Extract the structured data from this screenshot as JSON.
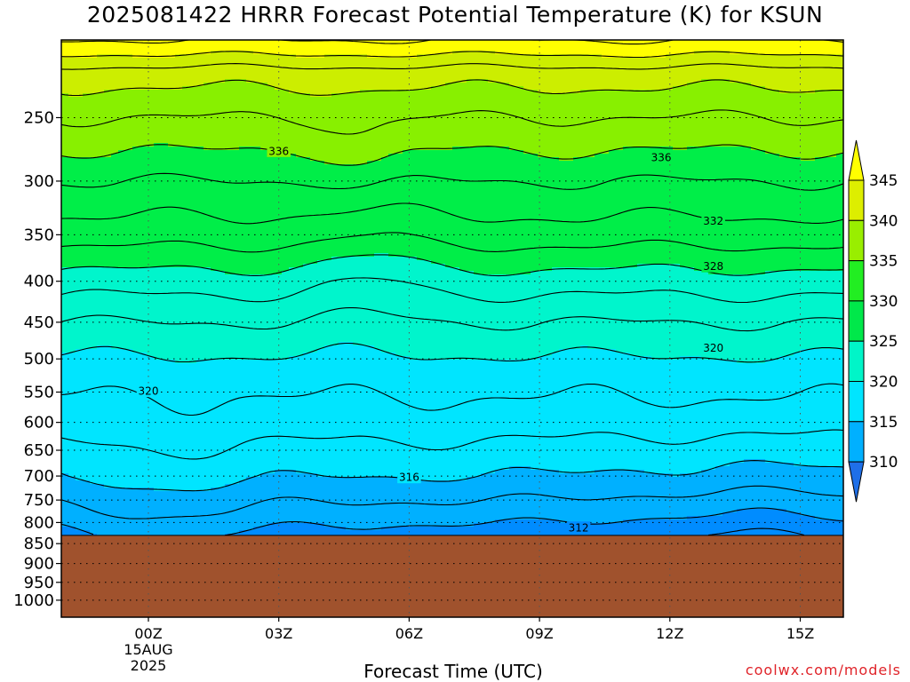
{
  "title": "2025081422 HRRR Forecast Potential Temperature (K) for KSUN",
  "credit": "coolwx.com/models",
  "chart_data": {
    "type": "contour",
    "title": "2025081422 HRRR Forecast Potential Temperature (K) for KSUN",
    "xlabel": "Forecast Time (UTC)",
    "ylabel": "",
    "x_ticks": [
      {
        "hour": 0,
        "lines": [
          "00Z",
          "15AUG",
          "2025"
        ]
      },
      {
        "hour": 3,
        "lines": [
          "03Z"
        ]
      },
      {
        "hour": 6,
        "lines": [
          "06Z"
        ]
      },
      {
        "hour": 9,
        "lines": [
          "09Z"
        ]
      },
      {
        "hour": 12,
        "lines": [
          "12Z"
        ]
      },
      {
        "hour": 15,
        "lines": [
          "15Z"
        ]
      }
    ],
    "xlim_hours": [
      -2,
      16
    ],
    "y_scale": "log-pressure",
    "y_ticks": [
      250,
      300,
      350,
      400,
      450,
      500,
      550,
      600,
      650,
      700,
      750,
      800,
      850,
      900,
      950,
      1000
    ],
    "ylim_hPa": [
      1050,
      200
    ],
    "surface_pressure_hPa": 830,
    "grid": true,
    "colorbar": {
      "ticks": [
        310,
        315,
        320,
        325,
        330,
        335,
        340,
        345
      ],
      "colors": [
        "#1f6fe8",
        "#00b0ff",
        "#00e5ff",
        "#00f5c8",
        "#00e84a",
        "#22ee22",
        "#99ee00",
        "#ddee00",
        "#ffff00"
      ]
    },
    "bands": [
      {
        "from": 308,
        "to": 312,
        "color": "#008cff"
      },
      {
        "from": 312,
        "to": 316,
        "color": "#00b0ff"
      },
      {
        "from": 316,
        "to": 322,
        "color": "#00e5ff"
      },
      {
        "from": 322,
        "to": 328,
        "color": "#00f5cc"
      },
      {
        "from": 328,
        "to": 336,
        "color": "#00ee48"
      },
      {
        "from": 336,
        "to": 340,
        "color": "#88f000"
      },
      {
        "from": 340,
        "to": 344,
        "color": "#ccee00"
      },
      {
        "from": 344,
        "to": 350,
        "color": "#ffff00"
      }
    ],
    "theta_profile": [
      {
        "hPa": 830,
        "K": 311
      },
      {
        "hPa": 780,
        "K": 313
      },
      {
        "hPa": 700,
        "K": 316
      },
      {
        "hPa": 600,
        "K": 319
      },
      {
        "hPa": 520,
        "K": 321
      },
      {
        "hPa": 450,
        "K": 324
      },
      {
        "hPa": 400,
        "K": 327
      },
      {
        "hPa": 350,
        "K": 331
      },
      {
        "hPa": 300,
        "K": 334
      },
      {
        "hPa": 275,
        "K": 336
      },
      {
        "hPa": 250,
        "K": 338
      },
      {
        "hPa": 220,
        "K": 341
      },
      {
        "hPa": 205,
        "K": 345
      }
    ],
    "contour_interval_K": 2,
    "contour_labels": [
      {
        "value": "336",
        "hour": 3.0,
        "hPa": 275
      },
      {
        "value": "336",
        "hour": 11.8,
        "hPa": 280
      },
      {
        "value": "332",
        "hour": 13.0,
        "hPa": 336
      },
      {
        "value": "328",
        "hour": 13.0,
        "hPa": 383
      },
      {
        "value": "320",
        "hour": 13.0,
        "hPa": 484
      },
      {
        "value": "320",
        "hour": 0.0,
        "hPa": 548
      },
      {
        "value": "316",
        "hour": 6.0,
        "hPa": 702
      },
      {
        "value": "312",
        "hour": 9.9,
        "hPa": 812
      }
    ],
    "legend_placement": "right"
  }
}
